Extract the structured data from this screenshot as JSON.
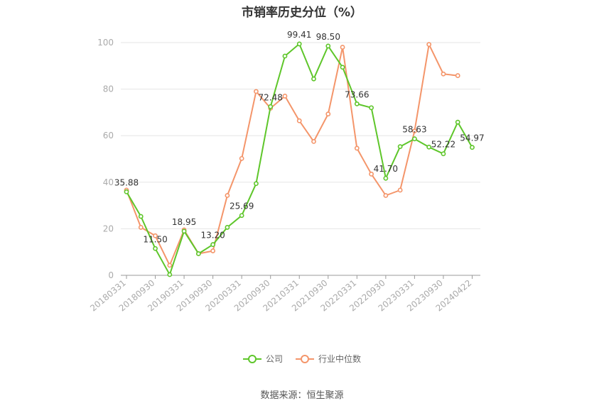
{
  "title": "市销率历史分位（%）",
  "source": "数据来源：恒生聚源",
  "colors": {
    "company": "#5ec62a",
    "industry": "#f4956a",
    "grid": "#e6e6e6",
    "axis": "#999999",
    "tick_text": "#aaaaaa"
  },
  "chart_data": {
    "type": "line",
    "title": "市销率历史分位（%）",
    "ylim": [
      0,
      100
    ],
    "yticks": [
      0,
      20,
      40,
      60,
      80,
      100
    ],
    "grid": true,
    "legend_position": "bottom",
    "x_tick_labels": [
      "20180331",
      "20180930",
      "20190331",
      "20190930",
      "20200331",
      "20200930",
      "20210331",
      "20210930",
      "20220331",
      "20220930",
      "20230331",
      "20230930",
      "20240422"
    ],
    "series": [
      {
        "name": "公司",
        "color": "#5ec62a",
        "values": [
          35.88,
          25.3,
          11.5,
          0.3,
          18.95,
          9.3,
          13.2,
          20.6,
          25.69,
          39.4,
          72.48,
          94.2,
          99.41,
          84.4,
          98.5,
          89.4,
          73.66,
          72.0,
          41.7,
          55.3,
          58.63,
          55.1,
          52.22,
          65.8,
          54.97
        ]
      },
      {
        "name": "行业中位数",
        "color": "#f4956a",
        "values": [
          36.6,
          20.6,
          17.0,
          4.3,
          19.5,
          9.3,
          10.5,
          34.3,
          50.2,
          79.0,
          71.8,
          77.0,
          66.4,
          57.5,
          69.3,
          98.0,
          54.6,
          43.5,
          34.3,
          36.6,
          62.0,
          99.2,
          86.5,
          85.8,
          null
        ]
      }
    ],
    "data_labels": [
      {
        "index": 0,
        "text": "35.88"
      },
      {
        "index": 2,
        "text": "11.50"
      },
      {
        "index": 4,
        "text": "18.95"
      },
      {
        "index": 6,
        "text": "13.20"
      },
      {
        "index": 8,
        "text": "25.69"
      },
      {
        "index": 10,
        "text": "72.48"
      },
      {
        "index": 12,
        "text": "99.41"
      },
      {
        "index": 14,
        "text": "98.50"
      },
      {
        "index": 16,
        "text": "73.66"
      },
      {
        "index": 18,
        "text": "41.70"
      },
      {
        "index": 20,
        "text": "58.63"
      },
      {
        "index": 22,
        "text": "52.22"
      },
      {
        "index": 24,
        "text": "54.97"
      }
    ]
  }
}
